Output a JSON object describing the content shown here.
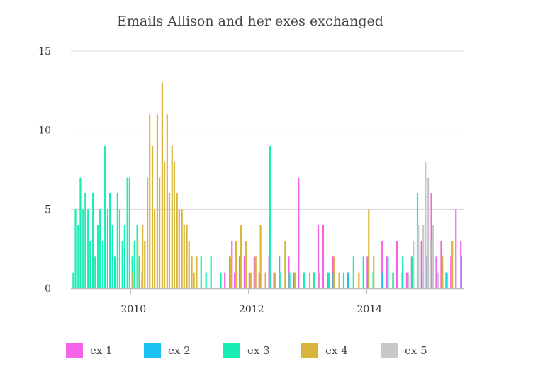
{
  "chart_data": {
    "type": "bar",
    "title": "Emails Allison and her exes exchanged",
    "xlabel": "",
    "ylabel": "",
    "ylim": [
      0,
      15
    ],
    "yticks": [
      0,
      5,
      10,
      15
    ],
    "xticks": [
      "2010",
      "2012",
      "2014"
    ],
    "xlim": [
      "2009-01",
      "2015-08"
    ],
    "grid": true,
    "legend_position": "bottom",
    "series": [
      {
        "name": "ex 1",
        "color": "#f463e8",
        "points": [
          [
            "2011-08",
            1
          ],
          [
            "2011-09",
            2
          ],
          [
            "2011-09",
            3
          ],
          [
            "2011-10",
            1
          ],
          [
            "2011-11",
            2
          ],
          [
            "2011-12",
            2
          ],
          [
            "2012-01",
            1
          ],
          [
            "2012-02",
            2
          ],
          [
            "2012-03",
            1
          ],
          [
            "2012-05",
            2
          ],
          [
            "2012-06",
            1
          ],
          [
            "2012-09",
            2
          ],
          [
            "2012-11",
            7
          ],
          [
            "2012-12",
            1
          ],
          [
            "2013-02",
            1
          ],
          [
            "2013-03",
            4
          ],
          [
            "2013-04",
            4
          ],
          [
            "2013-05",
            1
          ],
          [
            "2013-06",
            2
          ],
          [
            "2013-09",
            1
          ],
          [
            "2014-01",
            2
          ],
          [
            "2014-04",
            3
          ],
          [
            "2014-05",
            2
          ],
          [
            "2014-07",
            3
          ],
          [
            "2014-09",
            1
          ],
          [
            "2014-10",
            2
          ],
          [
            "2014-12",
            3
          ],
          [
            "2015-01",
            2
          ],
          [
            "2015-02",
            6
          ],
          [
            "2015-03",
            2
          ],
          [
            "2015-04",
            3
          ],
          [
            "2015-05",
            1
          ],
          [
            "2015-06",
            2
          ],
          [
            "2015-07",
            5
          ],
          [
            "2015-08",
            3
          ]
        ]
      },
      {
        "name": "ex 2",
        "color": "#1bc3f3",
        "points": [
          [
            "2012-05",
            1
          ],
          [
            "2012-07",
            2
          ],
          [
            "2012-10",
            1
          ],
          [
            "2013-02",
            1
          ],
          [
            "2013-06",
            1
          ],
          [
            "2013-09",
            1
          ],
          [
            "2014-01",
            1
          ],
          [
            "2014-04",
            1
          ],
          [
            "2014-08",
            1
          ],
          [
            "2014-12",
            1
          ],
          [
            "2015-02",
            2
          ],
          [
            "2015-05",
            1
          ],
          [
            "2015-08",
            2
          ]
        ]
      },
      {
        "name": "ex 3",
        "color": "#18eeb3",
        "points": [
          [
            "2009-01",
            1
          ],
          [
            "2009-01",
            5
          ],
          [
            "2009-02",
            4
          ],
          [
            "2009-02",
            7
          ],
          [
            "2009-03",
            5
          ],
          [
            "2009-03",
            6
          ],
          [
            "2009-04",
            5
          ],
          [
            "2009-04",
            3
          ],
          [
            "2009-05",
            6
          ],
          [
            "2009-05",
            2
          ],
          [
            "2009-06",
            4
          ],
          [
            "2009-06",
            5
          ],
          [
            "2009-07",
            3
          ],
          [
            "2009-07",
            9
          ],
          [
            "2009-08",
            5
          ],
          [
            "2009-08",
            6
          ],
          [
            "2009-09",
            4
          ],
          [
            "2009-09",
            2
          ],
          [
            "2009-10",
            6
          ],
          [
            "2009-10",
            5
          ],
          [
            "2009-11",
            3
          ],
          [
            "2009-11",
            4
          ],
          [
            "2009-12",
            7
          ],
          [
            "2009-12",
            7
          ],
          [
            "2010-01",
            2
          ],
          [
            "2010-01",
            3
          ],
          [
            "2010-02",
            4
          ],
          [
            "2010-02",
            2
          ],
          [
            "2010-03",
            1
          ],
          [
            "2011-03",
            2
          ],
          [
            "2011-04",
            1
          ],
          [
            "2011-05",
            2
          ],
          [
            "2011-07",
            1
          ],
          [
            "2012-05",
            9
          ],
          [
            "2012-07",
            1
          ],
          [
            "2012-09",
            1
          ],
          [
            "2012-12",
            1
          ],
          [
            "2013-02",
            1
          ],
          [
            "2013-05",
            1
          ],
          [
            "2013-08",
            1
          ],
          [
            "2013-10",
            2
          ],
          [
            "2013-12",
            2
          ],
          [
            "2014-02",
            1
          ],
          [
            "2014-05",
            2
          ],
          [
            "2014-06",
            1
          ],
          [
            "2014-08",
            2
          ],
          [
            "2014-10",
            2
          ],
          [
            "2014-11",
            6
          ],
          [
            "2015-01",
            2
          ],
          [
            "2015-05",
            1
          ]
        ]
      },
      {
        "name": "ex 4",
        "color": "#d9b63b",
        "points": [
          [
            "2010-01",
            1
          ],
          [
            "2010-02",
            3
          ],
          [
            "2010-03",
            4
          ],
          [
            "2010-03",
            3
          ],
          [
            "2010-04",
            7
          ],
          [
            "2010-04",
            11
          ],
          [
            "2010-05",
            9
          ],
          [
            "2010-05",
            5
          ],
          [
            "2010-06",
            11
          ],
          [
            "2010-06",
            7
          ],
          [
            "2010-07",
            13
          ],
          [
            "2010-07",
            8
          ],
          [
            "2010-08",
            11
          ],
          [
            "2010-08",
            6
          ],
          [
            "2010-09",
            9
          ],
          [
            "2010-09",
            8
          ],
          [
            "2010-10",
            6
          ],
          [
            "2010-10",
            5
          ],
          [
            "2010-11",
            5
          ],
          [
            "2010-11",
            4
          ],
          [
            "2010-12",
            4
          ],
          [
            "2010-12",
            3
          ],
          [
            "2011-01",
            2
          ],
          [
            "2011-01",
            1
          ],
          [
            "2011-02",
            2
          ],
          [
            "2011-09",
            2
          ],
          [
            "2011-10",
            3
          ],
          [
            "2011-11",
            4
          ],
          [
            "2011-12",
            3
          ],
          [
            "2012-01",
            1
          ],
          [
            "2012-02",
            2
          ],
          [
            "2012-03",
            4
          ],
          [
            "2012-04",
            1
          ],
          [
            "2012-06",
            1
          ],
          [
            "2012-08",
            3
          ],
          [
            "2012-10",
            1
          ],
          [
            "2013-01",
            1
          ],
          [
            "2013-03",
            1
          ],
          [
            "2013-06",
            2
          ],
          [
            "2013-07",
            1
          ],
          [
            "2013-11",
            1
          ],
          [
            "2014-01",
            5
          ],
          [
            "2014-02",
            2
          ],
          [
            "2014-06",
            1
          ],
          [
            "2014-09",
            1
          ],
          [
            "2015-03",
            1
          ],
          [
            "2015-04",
            2
          ],
          [
            "2015-06",
            3
          ]
        ]
      },
      {
        "name": "ex 5",
        "color": "#c8c8c8",
        "points": [
          [
            "2014-09",
            1
          ],
          [
            "2014-10",
            3
          ],
          [
            "2014-11",
            4
          ],
          [
            "2014-12",
            4
          ],
          [
            "2014-12",
            8
          ],
          [
            "2015-01",
            7
          ],
          [
            "2015-01",
            3
          ],
          [
            "2015-02",
            4
          ],
          [
            "2015-03",
            1
          ]
        ]
      }
    ]
  }
}
